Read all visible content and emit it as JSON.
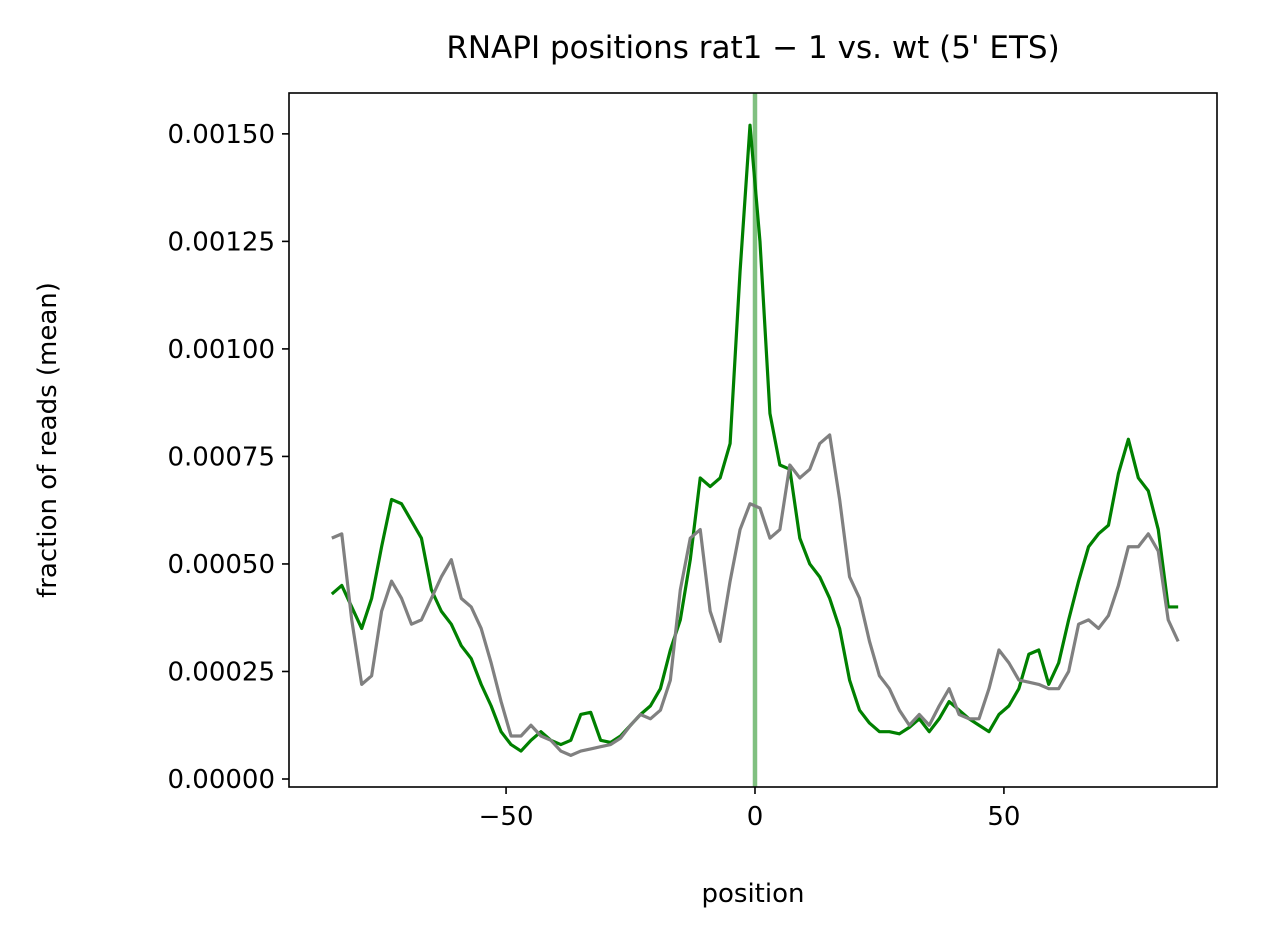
{
  "chart_data": {
    "type": "line",
    "title": "RNAPI positions rat1 − 1 vs. wt (5' ETS)",
    "xlabel": "position",
    "ylabel": "fraction of reads (mean)",
    "x": [
      -85,
      -83,
      -81,
      -79,
      -77,
      -75,
      -73,
      -71,
      -69,
      -67,
      -65,
      -63,
      -61,
      -59,
      -57,
      -55,
      -53,
      -51,
      -49,
      -47,
      -45,
      -43,
      -41,
      -39,
      -37,
      -35,
      -33,
      -31,
      -29,
      -27,
      -25,
      -23,
      -21,
      -19,
      -17,
      -15,
      -13,
      -11,
      -9,
      -7,
      -5,
      -3,
      -1,
      1,
      3,
      5,
      7,
      9,
      11,
      13,
      15,
      17,
      19,
      21,
      23,
      25,
      27,
      29,
      31,
      33,
      35,
      37,
      39,
      41,
      43,
      45,
      47,
      49,
      51,
      53,
      55,
      57,
      59,
      61,
      63,
      65,
      67,
      69,
      71,
      73,
      75,
      77,
      79,
      81,
      83,
      85
    ],
    "series": [
      {
        "color": "#008000",
        "values": [
          0.00043,
          0.00045,
          0.0004,
          0.00035,
          0.00042,
          0.00054,
          0.00065,
          0.00064,
          0.0006,
          0.00056,
          0.00044,
          0.00039,
          0.00036,
          0.00031,
          0.00028,
          0.00022,
          0.00017,
          0.00011,
          8e-05,
          6.5e-05,
          9e-05,
          0.00011,
          9e-05,
          8e-05,
          9e-05,
          0.00015,
          0.000155,
          9e-05,
          8.5e-05,
          0.0001,
          0.000125,
          0.00015,
          0.00017,
          0.00021,
          0.0003,
          0.00037,
          0.00051,
          0.0007,
          0.00068,
          0.0007,
          0.00078,
          0.00118,
          0.00152,
          0.00125,
          0.00085,
          0.00073,
          0.00072,
          0.00056,
          0.0005,
          0.00047,
          0.00042,
          0.00035,
          0.00023,
          0.00016,
          0.00013,
          0.00011,
          0.00011,
          0.000105,
          0.00012,
          0.00014,
          0.00011,
          0.00014,
          0.00018,
          0.00016,
          0.00014,
          0.000125,
          0.00011,
          0.00015,
          0.00017,
          0.00021,
          0.00029,
          0.0003,
          0.00022,
          0.00027,
          0.00037,
          0.00046,
          0.00054,
          0.00057,
          0.00059,
          0.00071,
          0.00079,
          0.0007,
          0.00067,
          0.00058,
          0.0004,
          0.0004
        ]
      },
      {
        "color": "#808080",
        "values": [
          0.00056,
          0.00057,
          0.00037,
          0.00022,
          0.00024,
          0.00039,
          0.00046,
          0.00042,
          0.00036,
          0.00037,
          0.00042,
          0.00047,
          0.00051,
          0.00042,
          0.0004,
          0.00035,
          0.00027,
          0.00018,
          0.0001,
          0.0001,
          0.000125,
          0.0001,
          9e-05,
          6.5e-05,
          5.5e-05,
          6.5e-05,
          7e-05,
          7.5e-05,
          8e-05,
          9.5e-05,
          0.000125,
          0.00015,
          0.00014,
          0.00016,
          0.00023,
          0.00044,
          0.00056,
          0.00058,
          0.00039,
          0.00032,
          0.00046,
          0.00058,
          0.00064,
          0.00063,
          0.00056,
          0.00058,
          0.00073,
          0.0007,
          0.00072,
          0.00078,
          0.0008,
          0.00065,
          0.00047,
          0.00042,
          0.00032,
          0.00024,
          0.00021,
          0.00016,
          0.000125,
          0.00015,
          0.000125,
          0.00017,
          0.00021,
          0.00015,
          0.00014,
          0.00014,
          0.00021,
          0.0003,
          0.00027,
          0.00023,
          0.000225,
          0.00022,
          0.00021,
          0.00021,
          0.00025,
          0.00036,
          0.00037,
          0.00035,
          0.00038,
          0.00045,
          0.00054,
          0.00054,
          0.00057,
          0.00053,
          0.00037,
          0.00032
        ]
      }
    ],
    "vline": {
      "x": 0,
      "color": "#80c080"
    },
    "xlim": [
      -93.6,
      92.8
    ],
    "ylim": [
      -1.86e-05,
      0.001595
    ],
    "xticks": [
      {
        "value": -50,
        "label": "−50"
      },
      0,
      50
    ],
    "yticks": [
      {
        "value": 0,
        "label": "0.00000"
      },
      {
        "value": 0.00025,
        "label": "0.00025"
      },
      {
        "value": 0.0005,
        "label": "0.00050"
      },
      {
        "value": 0.00075,
        "label": "0.00075"
      },
      {
        "value": 0.001,
        "label": "0.00100"
      },
      {
        "value": 0.00125,
        "label": "0.00125"
      },
      {
        "value": 0.0015,
        "label": "0.00150"
      }
    ],
    "grid": false
  }
}
